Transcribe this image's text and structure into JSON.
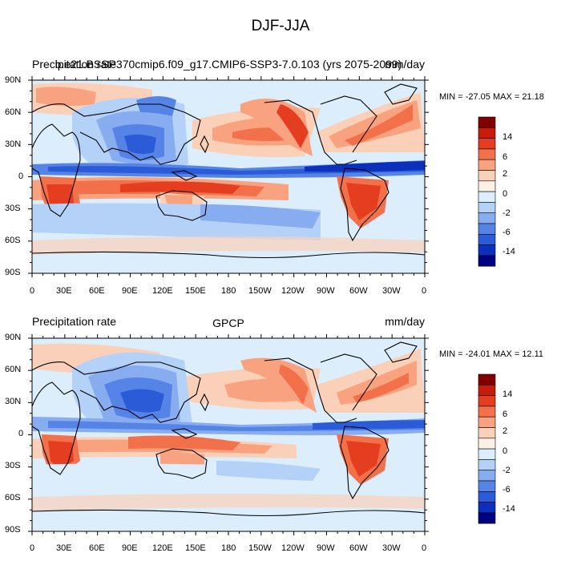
{
  "title": "DJF-JJA",
  "panels": [
    {
      "left_label": "Precipitation rate",
      "center_label": "b.e21.BSSP370cmip6.f09_g17.CMIP6-SSP3-7.0.103 (yrs 2075-2099)",
      "right_label": "mm/day",
      "minmax": "MIN = -27.05 MAX =  21.18"
    },
    {
      "left_label": "Precipitation rate",
      "center_label": "GPCP",
      "right_label": "mm/day",
      "minmax": "MIN = -24.01 MAX =  12.11"
    }
  ],
  "lat_ticks": [
    "90N",
    "60N",
    "30N",
    "0",
    "30S",
    "60S",
    "90S"
  ],
  "lon_ticks": [
    "0",
    "30E",
    "60E",
    "90E",
    "120E",
    "150E",
    "180",
    "150W",
    "120W",
    "90W",
    "60W",
    "30W",
    "0"
  ],
  "colorbar": {
    "labels": [
      "14",
      "6",
      "2",
      "0",
      "-2",
      "-6",
      "-14"
    ],
    "colors": [
      "#800000",
      "#c71c0b",
      "#e53d20",
      "#f2704a",
      "#f9a27f",
      "#fbd0b9",
      "#fdf0e6",
      "#dceefb",
      "#b4d2f7",
      "#87acf0",
      "#5584e6",
      "#2c5bd8",
      "#0c2fbc",
      "#000080"
    ]
  },
  "colors": {
    "ocean_background": "#dceefb",
    "coastline": "#000000"
  }
}
